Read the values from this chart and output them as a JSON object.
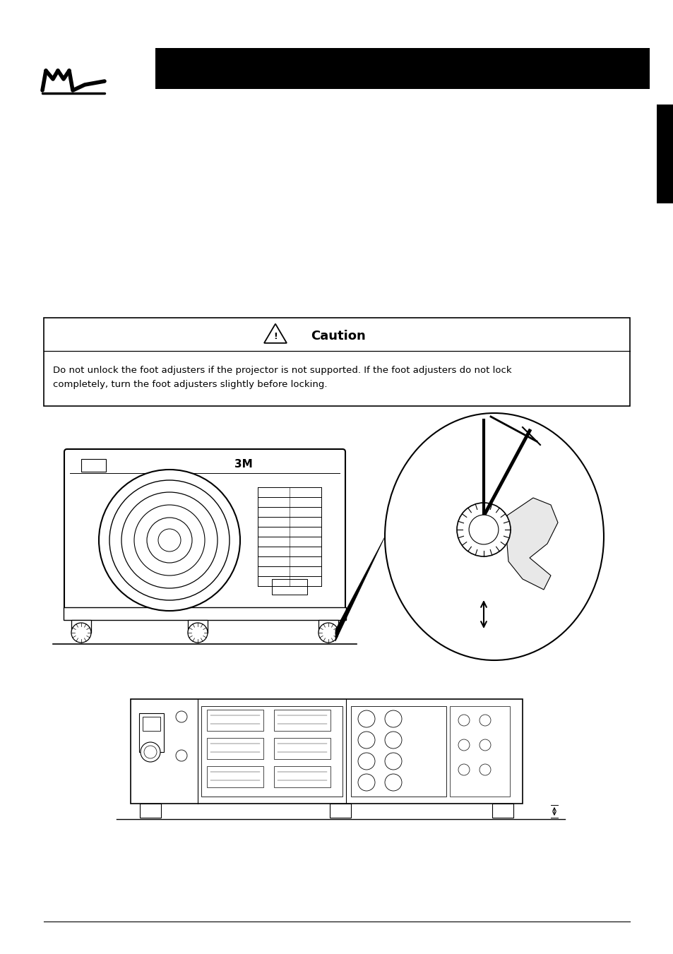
{
  "bg_color": "#ffffff",
  "header_bar_color": "#000000",
  "tab_color": "#000000",
  "caution_title": "Caution",
  "caution_text_line1": "Do not unlock the foot adjusters if the projector is not supported. If the foot adjusters do not lock",
  "caution_text_line2": "completely, turn the foot adjusters slightly before locking."
}
